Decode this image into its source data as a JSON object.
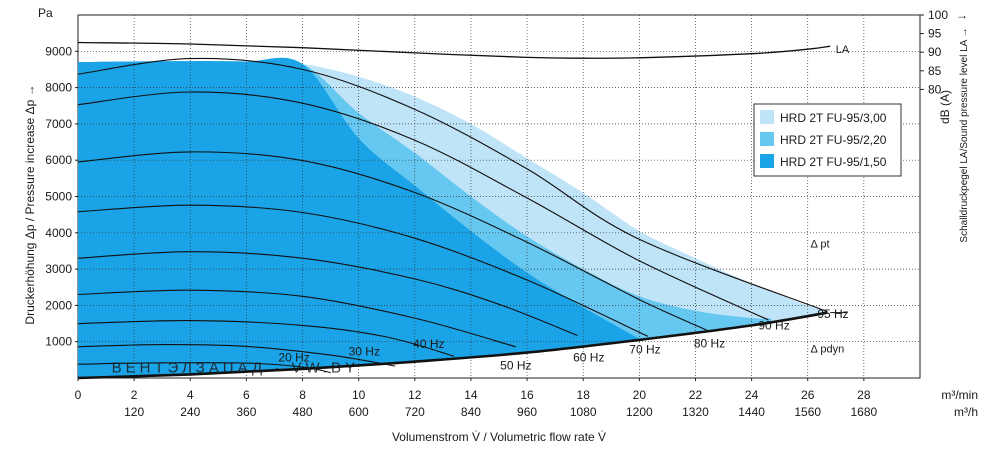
{
  "chart_data": {
    "type": "area",
    "y_unit": "Pa",
    "ylabel": "Druckerhöhung Δp / Pressure increase Δp →",
    "xlabel": "Volumenstrom V̇ / Volumetric flow rate V̇",
    "x_unit_min": "m³/min",
    "x_unit_h": "m³/h",
    "right_unit": "dB (A)",
    "right_label": "Schalldruckpegel LA/Sound pressure level LA →",
    "xlim": [
      0,
      30
    ],
    "ylim": [
      0,
      10000
    ],
    "right_ylim": [
      75,
      100
    ],
    "x_ticks_min": [
      "0",
      "2",
      "4",
      "6",
      "8",
      "10",
      "12",
      "14",
      "16",
      "18",
      "20",
      "22",
      "24",
      "26",
      "28"
    ],
    "x_ticks_h": [
      "120",
      "240",
      "360",
      "480",
      "600",
      "720",
      "840",
      "960",
      "1080",
      "1200",
      "1320",
      "1440",
      "1560",
      "1680"
    ],
    "y_ticks": [
      "1000",
      "2000",
      "3000",
      "4000",
      "5000",
      "6000",
      "7000",
      "8000",
      "9000"
    ],
    "right_ticks": [
      "100",
      "95",
      "90",
      "85",
      "80"
    ],
    "grid": true,
    "legend_position": "right",
    "series": [
      {
        "name": "HRD 2T FU-95/3,00",
        "color": "#bfe3f7",
        "top": [
          [
            0,
            8700
          ],
          [
            2,
            8720
          ],
          [
            4,
            8730
          ],
          [
            6,
            8720
          ],
          [
            8,
            8650
          ],
          [
            10,
            8300
          ],
          [
            12,
            7750
          ],
          [
            14,
            7000
          ],
          [
            16,
            6050
          ],
          [
            18,
            5100
          ],
          [
            20,
            4050
          ],
          [
            22,
            3300
          ],
          [
            24,
            2600
          ],
          [
            26,
            2000
          ],
          [
            26.7,
            1870
          ]
        ]
      },
      {
        "name": "HRD 2T FU-95/2,20",
        "color": "#66c8f1",
        "top": [
          [
            0,
            8700
          ],
          [
            2,
            8720
          ],
          [
            4,
            8730
          ],
          [
            6,
            8720
          ],
          [
            8,
            8650
          ],
          [
            10,
            7300
          ],
          [
            12,
            6200
          ],
          [
            14,
            5000
          ],
          [
            16,
            3900
          ],
          [
            18,
            3000
          ],
          [
            20,
            2250
          ],
          [
            22,
            1850
          ],
          [
            24,
            1650
          ],
          [
            24.7,
            1650
          ]
        ]
      },
      {
        "name": "HRD 2T FU-95/1,50",
        "color": "#1aa3e6",
        "top": [
          [
            0,
            8700
          ],
          [
            2,
            8720
          ],
          [
            4,
            8730
          ],
          [
            6,
            8720
          ],
          [
            8,
            8650
          ],
          [
            10,
            6600
          ],
          [
            12,
            5300
          ],
          [
            14,
            4050
          ],
          [
            16,
            2900
          ],
          [
            18,
            1950
          ],
          [
            20,
            1080
          ]
        ]
      }
    ],
    "base_curve": [
      [
        0,
        0
      ],
      [
        4,
        100
      ],
      [
        8,
        250
      ],
      [
        12,
        450
      ],
      [
        16,
        700
      ],
      [
        20,
        1050
      ],
      [
        24,
        1450
      ],
      [
        26.7,
        1800
      ]
    ],
    "freq_curves": [
      {
        "label": "20 Hz",
        "pts": [
          [
            0,
            380
          ],
          [
            3,
            420
          ],
          [
            6,
            410
          ],
          [
            8,
            300
          ],
          [
            9,
            150
          ]
        ]
      },
      {
        "label": "30 Hz",
        "pts": [
          [
            0,
            860
          ],
          [
            3,
            920
          ],
          [
            6,
            870
          ],
          [
            9,
            630
          ],
          [
            11.3,
            330
          ]
        ]
      },
      {
        "label": "40 Hz",
        "pts": [
          [
            0,
            1500
          ],
          [
            4,
            1580
          ],
          [
            8,
            1450
          ],
          [
            11,
            1130
          ],
          [
            13.4,
            600
          ]
        ]
      },
      {
        "label": "50 Hz",
        "pts": [
          [
            0,
            2300
          ],
          [
            4,
            2420
          ],
          [
            8,
            2250
          ],
          [
            12,
            1650
          ],
          [
            15.6,
            860
          ]
        ]
      },
      {
        "label": "60 Hz",
        "pts": [
          [
            0,
            3300
          ],
          [
            4,
            3480
          ],
          [
            8,
            3300
          ],
          [
            12,
            2730
          ],
          [
            15,
            2030
          ],
          [
            17.8,
            1170
          ]
        ]
      },
      {
        "label": "70 Hz",
        "pts": [
          [
            0,
            4580
          ],
          [
            4,
            4760
          ],
          [
            8,
            4560
          ],
          [
            12,
            3850
          ],
          [
            16,
            2700
          ],
          [
            20.3,
            1150
          ]
        ]
      },
      {
        "label": "80 Hz",
        "pts": [
          [
            0,
            5950
          ],
          [
            4,
            6230
          ],
          [
            8,
            5990
          ],
          [
            12,
            5110
          ],
          [
            16,
            3740
          ],
          [
            20,
            2160
          ],
          [
            22.4,
            1320
          ]
        ]
      },
      {
        "label": "90 Hz",
        "pts": [
          [
            0,
            7530
          ],
          [
            4,
            7880
          ],
          [
            8,
            7570
          ],
          [
            12,
            6550
          ],
          [
            16,
            4960
          ],
          [
            20,
            3230
          ],
          [
            24.6,
            1600
          ]
        ]
      },
      {
        "label": "95 Hz",
        "pts": [
          [
            0,
            8370
          ],
          [
            4,
            8800
          ],
          [
            8,
            8500
          ],
          [
            12,
            7400
          ],
          [
            16,
            5760
          ],
          [
            20,
            3820
          ],
          [
            26.7,
            1830
          ]
        ]
      }
    ],
    "la_curve": [
      [
        0,
        92.6
      ],
      [
        4,
        92.2
      ],
      [
        8,
        91.2
      ],
      [
        12,
        89.8
      ],
      [
        16,
        88.6
      ],
      [
        18,
        88.4
      ],
      [
        20,
        88.5
      ],
      [
        24,
        89.6
      ],
      [
        26,
        90.8
      ],
      [
        26.8,
        91.6
      ]
    ],
    "annotations": {
      "la": "LA",
      "dpt": "Δ pt",
      "dpdyn": "Δ pdyn"
    },
    "watermark": "ВЕНТЭЛЗАПАД · VW.BY"
  }
}
